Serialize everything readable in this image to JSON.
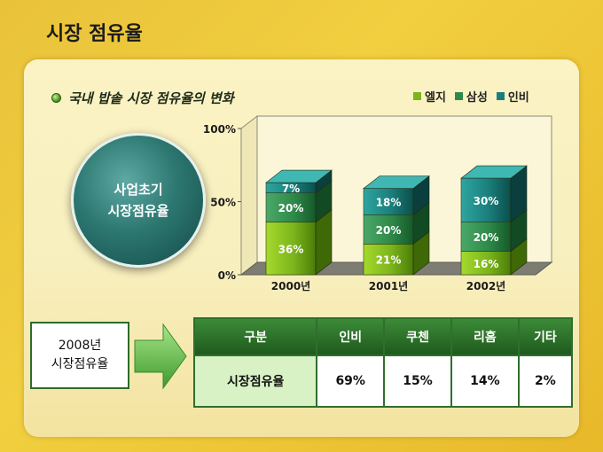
{
  "title": "시장 점유율",
  "subtitle": "국내 밥솥 시장 점유율의 변화",
  "circle": {
    "line1": "사업초기",
    "line2": "시장점유율"
  },
  "legend": [
    {
      "label": "엘지",
      "color": "#7cb51c"
    },
    {
      "label": "삼성",
      "color": "#2f8a4a"
    },
    {
      "label": "인비",
      "color": "#1a7f7c"
    }
  ],
  "chart_data": {
    "type": "bar",
    "stacked": true,
    "categories": [
      "2000년",
      "2001년",
      "2002년"
    ],
    "series": [
      {
        "name": "엘지",
        "values": [
          36,
          21,
          16
        ],
        "labels": [
          "36%",
          "21%",
          "16%"
        ],
        "color": "#7cb51c"
      },
      {
        "name": "삼성",
        "values": [
          20,
          20,
          20
        ],
        "labels": [
          "20%",
          "20%",
          "20%"
        ],
        "color": "#2f8a4a"
      },
      {
        "name": "인비",
        "values": [
          7,
          18,
          30
        ],
        "labels": [
          "7%",
          "18%",
          "30%"
        ],
        "color": "#1a7f7c"
      }
    ],
    "yticks": [
      "0%",
      "50%",
      "100%"
    ],
    "ylim": [
      0,
      100
    ]
  },
  "share_box": {
    "line1": "2008년",
    "line2": "시장점유율"
  },
  "share_table": {
    "headers": [
      "구분",
      "인비",
      "쿠첸",
      "리홈",
      "기타"
    ],
    "row": [
      "시장점유율",
      "69%",
      "15%",
      "14%",
      "2%"
    ]
  }
}
